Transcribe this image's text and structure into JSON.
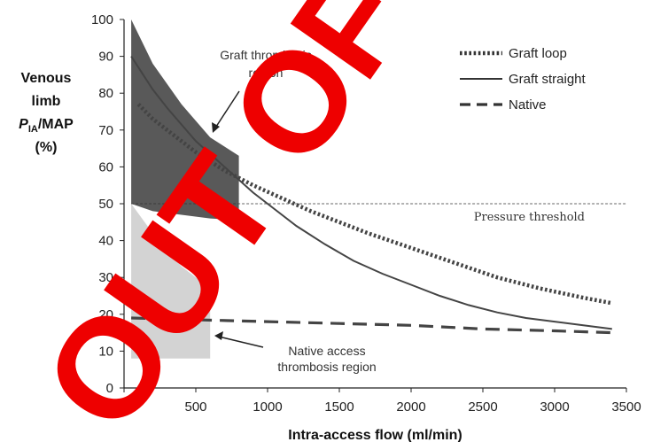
{
  "chart_data": {
    "type": "line",
    "ylabel_lines": [
      "Venous",
      "limb"
    ],
    "ylabel_p": "P",
    "ylabel_sub": "IA",
    "ylabel_rest": "/MAP",
    "ylabel_unit": "(%)",
    "xlabel": "Intra-access flow (ml/min)",
    "xlim": [
      0,
      3500
    ],
    "ylim": [
      0,
      100
    ],
    "x_ticks": [
      "0",
      "500",
      "1000",
      "1500",
      "2000",
      "2500",
      "3000",
      "3500"
    ],
    "y_ticks": [
      "0",
      "10",
      "20",
      "30",
      "40",
      "50",
      "60",
      "70",
      "80",
      "90",
      "100"
    ],
    "grid": false,
    "legend_position": "top-right",
    "series": [
      {
        "name": "Graft loop",
        "style": "dotted",
        "color": "#444444",
        "x": [
          100,
          200,
          300,
          500,
          700,
          900,
          1100,
          1300,
          1500,
          1700,
          2000,
          2300,
          2600,
          2900,
          3200,
          3400
        ],
        "y": [
          77,
          73,
          70,
          64,
          59,
          55,
          51.5,
          48,
          45,
          42,
          38,
          34,
          30,
          27,
          24.5,
          23
        ]
      },
      {
        "name": "Graft straight",
        "style": "solid",
        "color": "#444444",
        "x": [
          50,
          100,
          200,
          300,
          500,
          700,
          900,
          1000,
          1200,
          1400,
          1600,
          1800,
          2000,
          2200,
          2400,
          2600,
          2800,
          3000,
          3200,
          3400
        ],
        "y": [
          90,
          87,
          81,
          76,
          67,
          60,
          53,
          50,
          44,
          39,
          34.5,
          31,
          28,
          25,
          22.5,
          20.5,
          19,
          18,
          17,
          16
        ]
      },
      {
        "name": "Native",
        "style": "dashed",
        "color": "#444444",
        "x": [
          50,
          500,
          1000,
          1500,
          2000,
          2500,
          3000,
          3400
        ],
        "y": [
          19,
          18.5,
          18,
          17.5,
          17,
          16,
          15.5,
          15
        ]
      }
    ],
    "regions": [
      {
        "label_lines": [
          "Graft thrombosis",
          "region"
        ],
        "color": "#595959",
        "x_range": [
          50,
          800
        ],
        "upper": [
          [
            50,
            100
          ],
          [
            200,
            88
          ],
          [
            400,
            77
          ],
          [
            600,
            68
          ],
          [
            800,
            63
          ]
        ],
        "lower": [
          [
            50,
            50
          ],
          [
            200,
            48
          ],
          [
            400,
            47
          ],
          [
            600,
            46
          ],
          [
            800,
            45.5
          ]
        ]
      },
      {
        "label_lines": [
          "Native access",
          "thrombosis region"
        ],
        "color": "#d3d3d3",
        "x_range": [
          50,
          600
        ],
        "upper": [
          [
            50,
            50
          ],
          [
            200,
            42
          ],
          [
            400,
            33
          ],
          [
            600,
            27
          ]
        ],
        "lower": [
          [
            50,
            8
          ],
          [
            600,
            8
          ]
        ]
      }
    ],
    "threshold": {
      "value": 50,
      "label": "Pressure threshold"
    }
  },
  "watermark": "OUT OF"
}
